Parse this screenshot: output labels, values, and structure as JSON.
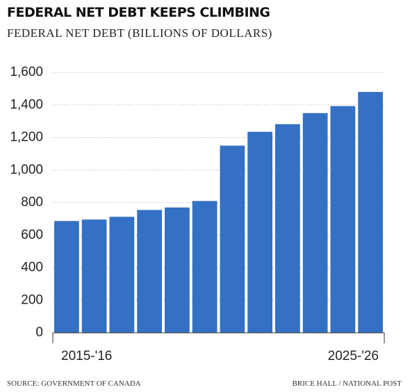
{
  "chart_data": {
    "type": "bar",
    "title": "FEDERAL NET DEBT KEEPS CLIMBING",
    "subtitle": "FEDERAL NET DEBT (BILLIONS OF DOLLARS)",
    "categories": [
      "2015-'16",
      null,
      null,
      null,
      null,
      null,
      null,
      null,
      null,
      null,
      null,
      "2025-'26"
    ],
    "values": [
      687,
      696,
      713,
      755,
      770,
      810,
      1150,
      1235,
      1282,
      1350,
      1393,
      1480
    ],
    "color": "#3470c3",
    "ylim": [
      0,
      1600
    ],
    "yticks": [
      0,
      200,
      400,
      600,
      800,
      {
        "value": 1000,
        "label": "1,000"
      },
      {
        "value": 1200,
        "label": "1,200"
      },
      {
        "value": 1400,
        "label": "1,400"
      },
      {
        "value": 1600,
        "label": "1,600"
      }
    ],
    "grid": true,
    "source": "SOURCE: GOVERNMENT OF CANADA",
    "credit": "BRICE HALL / NATIONAL POST"
  }
}
